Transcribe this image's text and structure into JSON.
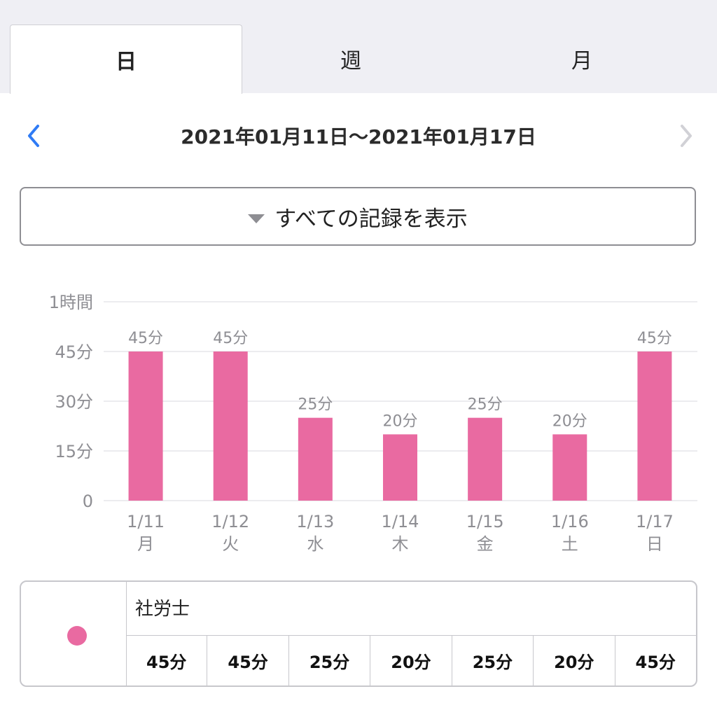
{
  "tabs": [
    {
      "label": "日",
      "active": true
    },
    {
      "label": "週",
      "active": false
    },
    {
      "label": "月",
      "active": false
    }
  ],
  "date_nav": {
    "range": "2021年01月11日〜2021年01月17日",
    "prev_icon": "chevron-left-icon",
    "next_icon": "chevron-right-icon",
    "prev_enabled": true,
    "next_enabled": false
  },
  "filter": {
    "label": "すべての記録を表示",
    "icon": "triangle-down-icon"
  },
  "colors": {
    "accent": "#2f7bf5",
    "bar": "#e96aa1",
    "disabled": "#d1d1d6",
    "tick": "#8e8e93"
  },
  "chart_data": {
    "type": "bar",
    "categories": [
      "1/11",
      "1/12",
      "1/13",
      "1/14",
      "1/15",
      "1/16",
      "1/17"
    ],
    "weekdays": [
      "月",
      "火",
      "水",
      "木",
      "金",
      "土",
      "日"
    ],
    "values": [
      45,
      45,
      25,
      20,
      25,
      20,
      45
    ],
    "value_labels": [
      "45分",
      "45分",
      "25分",
      "20分",
      "25分",
      "20分",
      "45分"
    ],
    "unit": "分",
    "ylim": [
      0,
      60
    ],
    "y_ticks": [
      {
        "value": 0,
        "label": "0"
      },
      {
        "value": 15,
        "label": "15分"
      },
      {
        "value": 30,
        "label": "30分"
      },
      {
        "value": 45,
        "label": "45分"
      },
      {
        "value": 60,
        "label": "1時間"
      }
    ],
    "grid": true,
    "title": "",
    "xlabel": "",
    "ylabel": ""
  },
  "summary": {
    "subject": "社労士",
    "values": [
      "45分",
      "45分",
      "25分",
      "20分",
      "25分",
      "20分",
      "45分"
    ]
  }
}
